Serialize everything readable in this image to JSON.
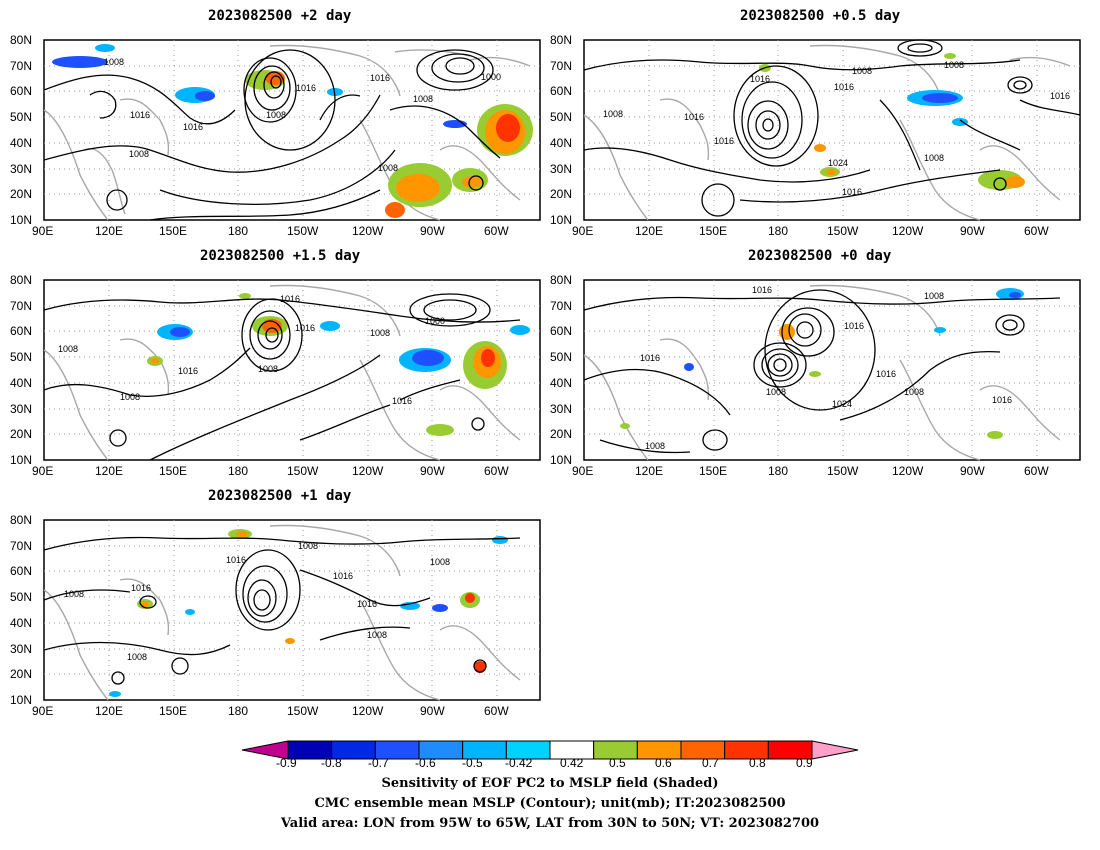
{
  "panels": [
    {
      "title": "2023082500 +2 day",
      "contour_labels": [
        "1008",
        "1016",
        "1016",
        "1008",
        "1016",
        "1008",
        "1000",
        "1016",
        "1008",
        "1008"
      ]
    },
    {
      "title": "2023082500 +0.5 day",
      "contour_labels": [
        "1008",
        "1016",
        "1008",
        "1008",
        "1016",
        "1024",
        "1016",
        "1016",
        "1016",
        "1008",
        "1016"
      ]
    },
    {
      "title": "2023082500 +1.5 day",
      "contour_labels": [
        "1016",
        "1008",
        "1016",
        "1008",
        "1000",
        "1008",
        "1016",
        "1008",
        "1016"
      ]
    },
    {
      "title": "2023082500 +0 day",
      "contour_labels": [
        "1016",
        "1008",
        "1016",
        "1016",
        "1008",
        "1024",
        "1016",
        "1008",
        "1016",
        "1008"
      ]
    },
    {
      "title": "2023082500 +1 day",
      "contour_labels": [
        "1016",
        "1008",
        "1016",
        "1008",
        "1016",
        "1016",
        "1008",
        "1008",
        "1008"
      ]
    }
  ],
  "lat_ticks": [
    "80N",
    "70N",
    "60N",
    "50N",
    "40N",
    "30N",
    "20N",
    "10N"
  ],
  "lon_ticks": [
    "90E",
    "120E",
    "150E",
    "180",
    "150W",
    "120W",
    "90W",
    "60W"
  ],
  "colorbar": {
    "labels": [
      "-0.9",
      "-0.8",
      "-0.7",
      "-0.6",
      "-0.5",
      "-0.42",
      "0.42",
      "0.5",
      "0.6",
      "0.7",
      "0.8",
      "0.9"
    ],
    "colors": [
      "#c10090",
      "#0000b4",
      "#0028e6",
      "#1e50ff",
      "#1e8cff",
      "#00b4ff",
      "#00d2ff",
      "#ffffff",
      "#99cc33",
      "#ff9600",
      "#ff6400",
      "#ff3200",
      "#ff0000",
      "#ffa0c8"
    ]
  },
  "caption": {
    "line1": "Sensitivity of EOF PC2 to MSLP field (Shaded)",
    "line2": "CMC ensemble mean MSLP (Contour); unit(mb); IT:2023082500",
    "line3": "Valid area: LON from 95W to 65W, LAT from 30N to 50N; VT: 2023082700"
  }
}
